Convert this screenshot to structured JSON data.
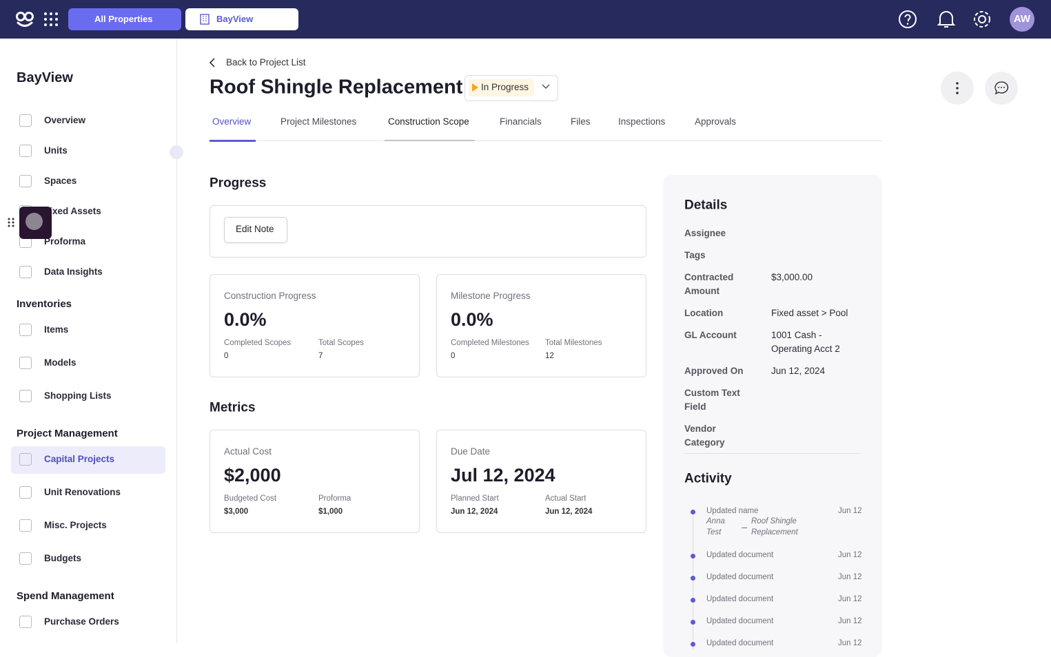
{
  "topbar": {
    "all_properties": "All Properties",
    "property": "BayView",
    "avatar": "AW"
  },
  "sidebar": {
    "title": "BayView",
    "items": [
      "Overview",
      "Units",
      "Spaces",
      "Fixed Assets",
      "Proforma",
      "Data Insights"
    ],
    "sections": [
      {
        "title": "Inventories",
        "items": [
          "Items",
          "Models",
          "Shopping Lists"
        ]
      },
      {
        "title": "Project Management",
        "items": [
          "Capital Projects",
          "Unit Renovations",
          "Misc. Projects",
          "Budgets"
        ]
      },
      {
        "title": "Spend Management",
        "items": [
          "Purchase Orders"
        ]
      }
    ]
  },
  "header": {
    "back": "Back to Project List",
    "title": "Roof Shingle Replacement",
    "status": "In Progress"
  },
  "tabs": [
    "Overview",
    "Project Milestones",
    "Construction Scope",
    "Financials",
    "Files",
    "Inspections",
    "Approvals"
  ],
  "progress": {
    "title": "Progress",
    "edit_note": "Edit Note",
    "cards": [
      {
        "label": "Construction Progress",
        "value": "0.0%",
        "stats": [
          {
            "label": "Completed Scopes",
            "value": "0"
          },
          {
            "label": "Total Scopes",
            "value": "7"
          }
        ]
      },
      {
        "label": "Milestone Progress",
        "value": "0.0%",
        "stats": [
          {
            "label": "Completed Milestones",
            "value": "0"
          },
          {
            "label": "Total Milestones",
            "value": "12"
          }
        ]
      }
    ]
  },
  "metrics": {
    "title": "Metrics",
    "cards": [
      {
        "label": "Actual Cost",
        "value": "$2,000",
        "stats": [
          {
            "label": "Budgeted Cost",
            "value": "$3,000"
          },
          {
            "label": "Proforma",
            "value": "$1,000"
          }
        ]
      },
      {
        "label": "Due Date",
        "value": "Jul 12, 2024",
        "stats": [
          {
            "label": "Planned Start",
            "value": "Jun 12, 2024"
          },
          {
            "label": "Actual Start",
            "value": "Jun 12, 2024"
          }
        ]
      }
    ]
  },
  "details": {
    "title": "Details",
    "rows": [
      {
        "label": "Assignee"
      },
      {
        "label": "Tags"
      },
      {
        "label": "Contracted Amount",
        "value": "$3,000.00"
      },
      {
        "label": "Location",
        "value": "Fixed asset > Pool"
      },
      {
        "label": "GL Account",
        "value": "1001 Cash - Operating Acct 2"
      },
      {
        "label": "Approved On",
        "value": "Jun 12, 2024"
      },
      {
        "label": "Custom Text Field"
      },
      {
        "label": "Vendor Category"
      }
    ]
  },
  "activity": {
    "title": "Activity",
    "items": [
      {
        "text": "Updated name",
        "date": "Jun 12",
        "from": "Anna Test",
        "to": "Roof Shingle Replacement"
      },
      {
        "text": "Updated document",
        "date": "Jun 12"
      },
      {
        "text": "Updated document",
        "date": "Jun 12"
      },
      {
        "text": "Updated document",
        "date": "Jun 12"
      },
      {
        "text": "Updated document",
        "date": "Jun 12"
      },
      {
        "text": "Updated document",
        "date": "Jun 12"
      }
    ]
  }
}
